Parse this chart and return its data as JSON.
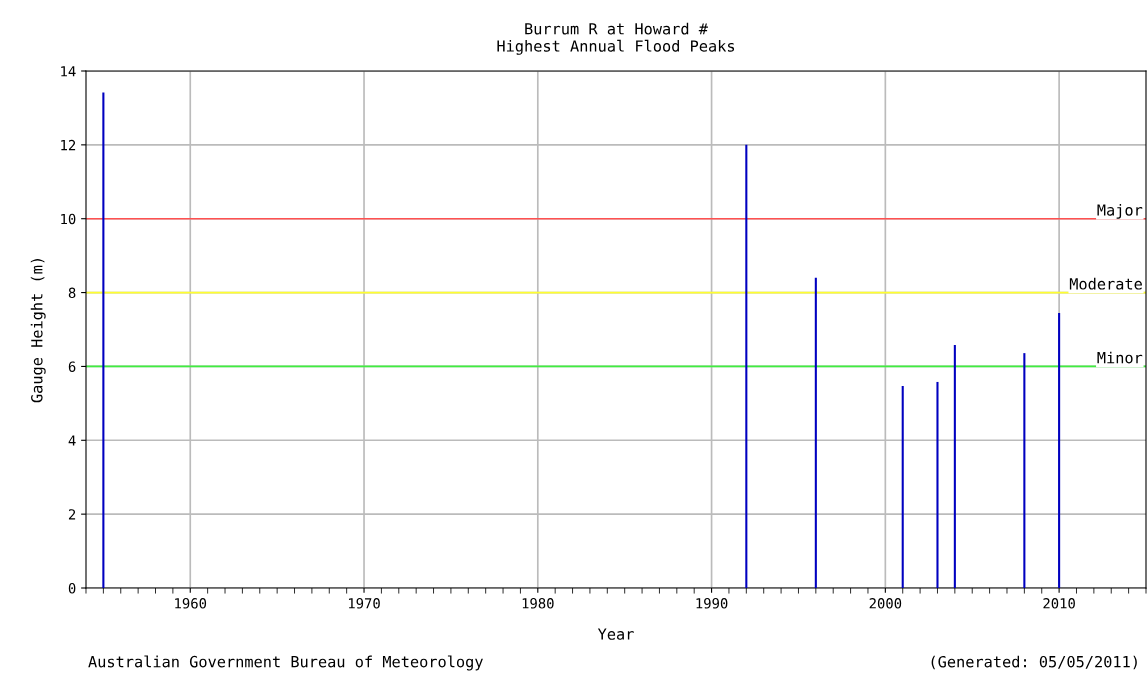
{
  "chart_data": {
    "type": "bar",
    "title": "Burrum R at Howard #\nHighest Annual Flood Peaks",
    "xlabel": "Year",
    "ylabel": "Gauge Height (m)",
    "x": [
      1955,
      1992,
      1996,
      2001,
      2003,
      2004,
      2008,
      2010
    ],
    "values": [
      13.42,
      12.0,
      8.4,
      5.47,
      5.58,
      6.58,
      6.36,
      7.45
    ],
    "color": "#0000c0",
    "xlim": [
      1954,
      2015
    ],
    "xticks": [
      1960,
      1970,
      1980,
      1990,
      2000,
      2010
    ],
    "ylim": [
      0,
      14
    ],
    "yticks": [
      0,
      2,
      4,
      6,
      8,
      10,
      12,
      14
    ],
    "grid": true,
    "ref_lines": [
      {
        "axis": "y",
        "value": 10,
        "label": "Major",
        "color": "#ff5050"
      },
      {
        "axis": "y",
        "value": 8,
        "label": "Moderate",
        "color": "#ffff30"
      },
      {
        "axis": "y",
        "value": 6,
        "label": "Minor",
        "color": "#40ee40"
      }
    ],
    "annotations": [
      "Australian Government Bureau of Meteorology",
      "(Generated: 05/05/2011)"
    ]
  }
}
